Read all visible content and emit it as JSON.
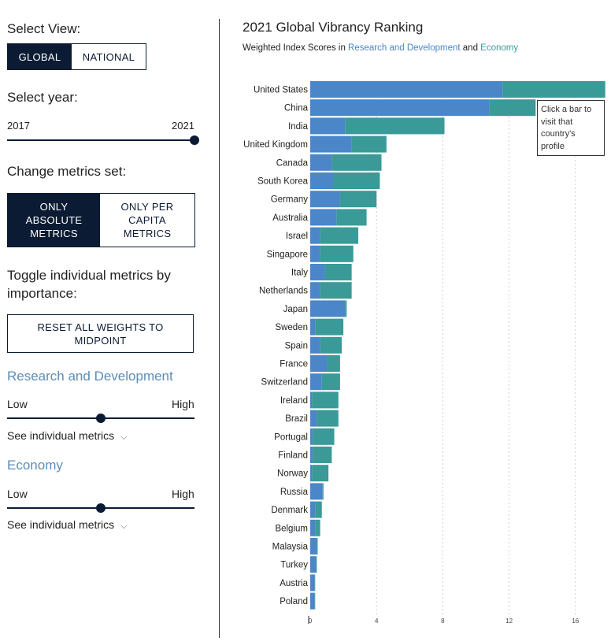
{
  "sidebar": {
    "select_view_label": "Select View:",
    "view_buttons": [
      "GLOBAL",
      "NATIONAL"
    ],
    "select_year_label": "Select year:",
    "year_min": "2017",
    "year_max": "2021",
    "year_selected_fraction": 1.0,
    "metrics_label": "Change metrics set:",
    "metrics_buttons": [
      "ONLY ABSOLUTE METRICS",
      "ONLY PER CAPITA METRICS"
    ],
    "toggle_label": "Toggle individual metrics by importance:",
    "reset_label": "RESET ALL WEIGHTS TO MIDPOINT",
    "groups": [
      {
        "title": "Research and Development",
        "low": "Low",
        "high": "High",
        "weight_fraction": 0.5,
        "see_link": "See individual metrics"
      },
      {
        "title": "Economy",
        "low": "Low",
        "high": "High",
        "weight_fraction": 0.5,
        "see_link": "See individual metrics"
      }
    ]
  },
  "chart": {
    "title": "2021 Global Vibrancy Ranking",
    "subtitle_prefix": "Weighted Index Scores in ",
    "subtitle_rd": "Research and Development",
    "subtitle_and": " and ",
    "subtitle_econ": "Economy",
    "tooltip": "Click a bar to visit that country's profile",
    "colors": {
      "rd": "#4a86c8",
      "econ": "#3a9a97"
    }
  },
  "chart_data": {
    "type": "bar",
    "orientation": "horizontal",
    "stacked": true,
    "categories": [
      "United States",
      "China",
      "India",
      "United Kingdom",
      "Canada",
      "South Korea",
      "Germany",
      "Australia",
      "Israel",
      "Singapore",
      "Italy",
      "Netherlands",
      "Japan",
      "Sweden",
      "Spain",
      "France",
      "Switzerland",
      "Ireland",
      "Brazil",
      "Portugal",
      "Finland",
      "Norway",
      "Russia",
      "Denmark",
      "Belgium",
      "Malaysia",
      "Turkey",
      "Austria",
      "Poland"
    ],
    "series": [
      {
        "name": "Research and Development",
        "values": [
          11.6,
          10.8,
          2.1,
          2.5,
          1.3,
          1.4,
          1.8,
          1.6,
          0.6,
          0.6,
          0.9,
          0.6,
          2.1,
          0.3,
          0.6,
          1.0,
          0.7,
          0.1,
          0.4,
          0.15,
          0.15,
          0.1,
          0.75,
          0.3,
          0.3,
          0.4,
          0.35,
          0.25,
          0.25
        ]
      },
      {
        "name": "Economy",
        "values": [
          6.2,
          2.8,
          6.0,
          2.1,
          3.0,
          2.8,
          2.2,
          1.8,
          2.3,
          2.0,
          1.6,
          1.9,
          0.1,
          1.7,
          1.3,
          0.8,
          1.1,
          1.6,
          1.3,
          1.3,
          1.15,
          1.0,
          0.05,
          0.4,
          0.3,
          0.05,
          0.05,
          0.05,
          0.05
        ]
      }
    ],
    "x_ticks": [
      "0",
      "4",
      "8",
      "12",
      "16"
    ],
    "xlim": [
      0,
      17.8
    ],
    "grid": true
  }
}
